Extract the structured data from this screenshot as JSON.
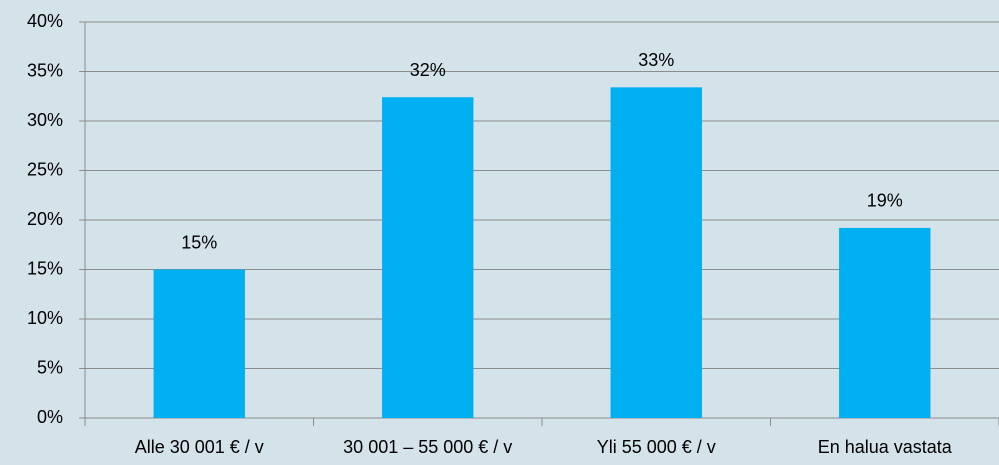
{
  "chart_data": {
    "type": "bar",
    "categories": [
      "Alle 30 001 € / v",
      "30 001 – 55 000 € / v",
      "Yli 55 000 € / v",
      "En halua vastata"
    ],
    "values": [
      15,
      32.4,
      33.4,
      19.2
    ],
    "value_labels": [
      "15%",
      "32%",
      "33%",
      "19%"
    ],
    "color": "#00b0f0",
    "ylim": [
      0,
      40
    ],
    "yticks": [
      {
        "value": 0,
        "label": "0%"
      },
      {
        "value": 5,
        "label": "5%"
      },
      {
        "value": 10,
        "label": "10%"
      },
      {
        "value": 15,
        "label": "15%"
      },
      {
        "value": 20,
        "label": "20%"
      },
      {
        "value": 25,
        "label": "25%"
      },
      {
        "value": 30,
        "label": "30%"
      },
      {
        "value": 35,
        "label": "35%"
      },
      {
        "value": 40,
        "label": "40%"
      }
    ],
    "grid": true
  }
}
